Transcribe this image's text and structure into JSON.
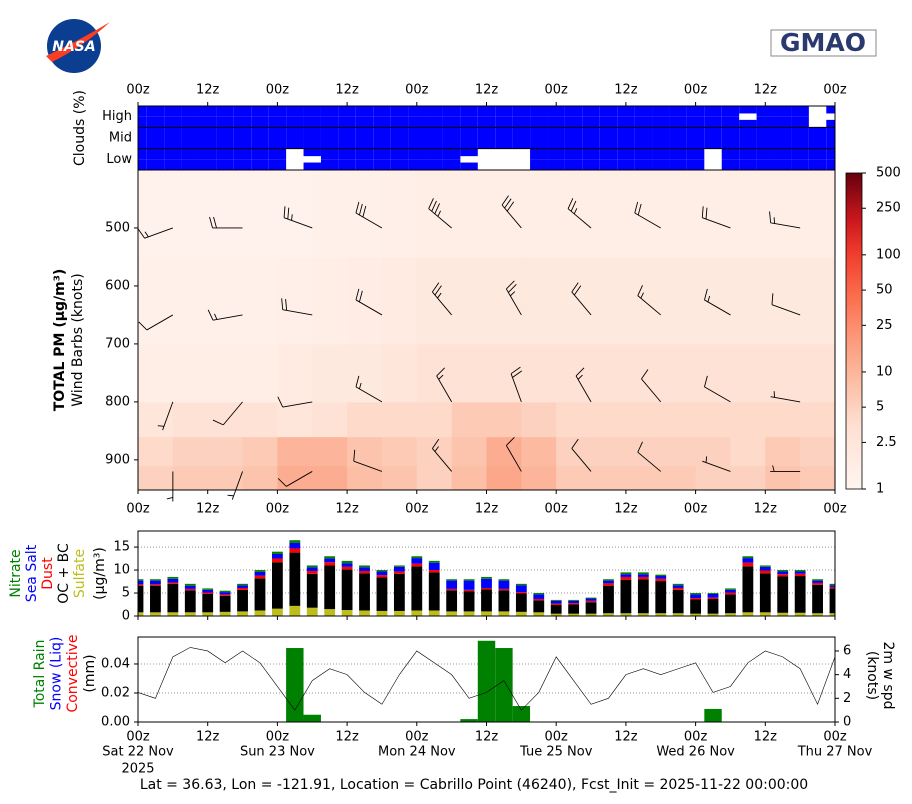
{
  "header": {
    "logo_left": "NASA",
    "logo_right": "GMAO"
  },
  "time_axis": {
    "xlim": [
      0,
      120
    ],
    "xticks": [
      {
        "value": 0,
        "label": "00z"
      },
      {
        "value": 12,
        "label": "12z"
      },
      {
        "value": 24,
        "label": "00z"
      },
      {
        "value": 36,
        "label": "12z"
      },
      {
        "value": 48,
        "label": "00z"
      },
      {
        "value": 60,
        "label": "12z"
      },
      {
        "value": 72,
        "label": "00z"
      },
      {
        "value": 84,
        "label": "12z"
      },
      {
        "value": 96,
        "label": "00z"
      },
      {
        "value": 108,
        "label": "12z"
      },
      {
        "value": 120,
        "label": "00z"
      }
    ],
    "dates": [
      {
        "value": 0,
        "label": "Sat 22 Nov"
      },
      {
        "value": 24,
        "label": "Sun 23 Nov"
      },
      {
        "value": 48,
        "label": "Mon 24 Nov"
      },
      {
        "value": 72,
        "label": "Tue 25 Nov"
      },
      {
        "value": 96,
        "label": "Wed 26 Nov"
      },
      {
        "value": 120,
        "label": "Thu 27 Nov"
      }
    ],
    "year": "2025"
  },
  "chart_data": [
    {
      "type": "cloud_rows",
      "ylabel": "Clouds (%)",
      "color": "#0000ff",
      "x": [
        0,
        3,
        6,
        9,
        12,
        15,
        18,
        21,
        24,
        27,
        30,
        33,
        36,
        39,
        42,
        45,
        48,
        51,
        54,
        57,
        60,
        63,
        66,
        69,
        72,
        75,
        78,
        81,
        84,
        87,
        90,
        93,
        96,
        99,
        102,
        105,
        108,
        111,
        114,
        117,
        120
      ],
      "series": [
        {
          "name": "High",
          "values": [
            100,
            100,
            100,
            100,
            100,
            100,
            100,
            100,
            100,
            100,
            100,
            100,
            100,
            100,
            100,
            100,
            100,
            100,
            100,
            100,
            100,
            100,
            100,
            100,
            100,
            100,
            100,
            100,
            100,
            100,
            100,
            100,
            100,
            100,
            100,
            70,
            100,
            100,
            100,
            0,
            70
          ]
        },
        {
          "name": "Mid",
          "values": [
            100,
            100,
            100,
            100,
            100,
            100,
            100,
            100,
            100,
            100,
            100,
            100,
            100,
            100,
            100,
            100,
            100,
            100,
            100,
            100,
            100,
            100,
            100,
            100,
            100,
            100,
            100,
            100,
            100,
            100,
            100,
            100,
            100,
            100,
            100,
            100,
            100,
            100,
            100,
            100,
            100
          ]
        },
        {
          "name": "Low",
          "values": [
            100,
            100,
            100,
            100,
            100,
            100,
            100,
            100,
            100,
            0,
            70,
            100,
            100,
            100,
            100,
            100,
            100,
            100,
            100,
            70,
            0,
            0,
            0,
            100,
            100,
            100,
            100,
            100,
            100,
            100,
            100,
            100,
            100,
            0,
            100,
            100,
            100,
            100,
            100,
            100,
            100
          ]
        }
      ]
    },
    {
      "type": "heatmap",
      "ylabel": "TOTAL PM (μg/m³)",
      "ylabel2": "Wind Barbs (knots)",
      "ylim": [
        952,
        400
      ],
      "yticks": [
        500,
        600,
        700,
        800,
        900
      ],
      "x_edges": [
        0,
        6,
        12,
        18,
        24,
        30,
        36,
        42,
        48,
        54,
        60,
        66,
        72,
        78,
        84,
        90,
        96,
        102,
        108,
        114,
        120
      ],
      "y_edges": [
        952,
        910,
        860,
        800,
        700,
        550,
        400
      ],
      "values": [
        [
          5,
          6,
          6,
          7,
          12,
          12,
          8,
          7,
          5,
          8,
          14,
          10,
          6,
          6,
          6,
          6,
          5,
          5,
          7,
          6
        ],
        [
          4,
          5,
          5,
          6,
          10,
          10,
          7,
          6,
          5,
          7,
          12,
          9,
          5,
          5,
          5,
          5,
          5,
          4,
          6,
          5
        ],
        [
          2.5,
          3,
          3,
          3,
          2.5,
          3,
          4,
          4,
          4,
          6,
          6,
          5,
          4,
          4,
          4,
          4,
          4,
          4,
          4,
          4
        ],
        [
          1.5,
          1.5,
          1.5,
          1.5,
          1.8,
          2,
          2,
          2.5,
          3,
          3,
          3,
          3,
          3,
          3,
          3,
          3,
          3,
          3,
          3,
          3
        ],
        [
          1.3,
          1.3,
          1.3,
          1.3,
          1.4,
          1.5,
          1.6,
          1.8,
          2,
          2,
          2,
          2,
          2,
          2,
          2,
          2,
          2,
          2,
          2,
          2
        ],
        [
          1.2,
          1.2,
          1.2,
          1.2,
          1.2,
          1.3,
          1.3,
          1.4,
          1.5,
          1.5,
          1.5,
          1.5,
          1.5,
          1.5,
          1.5,
          1.5,
          1.5,
          1.5,
          1.5,
          1.5
        ]
      ],
      "colormap": "Reds",
      "log_scale": true,
      "clim": [
        1,
        500
      ],
      "cticks": [
        1,
        2.5,
        5,
        10,
        25,
        50,
        100,
        250,
        500
      ],
      "barbs": {
        "x": [
          6,
          18,
          30,
          42,
          54,
          66,
          78,
          90,
          102,
          114
        ],
        "levels": [
          500,
          650,
          800,
          920
        ],
        "speed": [
          [
            15,
            20,
            25,
            30,
            35,
            30,
            25,
            20,
            20,
            15
          ],
          [
            10,
            15,
            20,
            20,
            25,
            25,
            20,
            15,
            15,
            10
          ],
          [
            5,
            10,
            10,
            15,
            15,
            20,
            15,
            10,
            10,
            5
          ],
          [
            5,
            5,
            10,
            10,
            15,
            10,
            10,
            10,
            5,
            5
          ]
        ],
        "direction": [
          [
            250,
            270,
            290,
            300,
            310,
            320,
            310,
            300,
            290,
            280
          ],
          [
            240,
            260,
            280,
            300,
            320,
            330,
            320,
            310,
            300,
            290
          ],
          [
            200,
            220,
            260,
            300,
            330,
            340,
            330,
            320,
            300,
            280
          ],
          [
            180,
            200,
            240,
            290,
            320,
            330,
            320,
            310,
            290,
            270
          ]
        ]
      }
    },
    {
      "type": "stacked_bar",
      "ylabel": "(μg/m³)",
      "ylim": [
        0,
        18.5
      ],
      "yticks": [
        0,
        5,
        10,
        15
      ],
      "grid": true,
      "x": [
        0,
        3,
        6,
        9,
        12,
        15,
        18,
        21,
        24,
        27,
        30,
        33,
        36,
        39,
        42,
        45,
        48,
        51,
        54,
        57,
        60,
        63,
        66,
        69,
        72,
        75,
        78,
        81,
        84,
        87,
        90,
        93,
        96,
        99,
        102,
        105,
        108,
        111,
        114,
        117,
        120
      ],
      "series": [
        {
          "name": "Sulfate",
          "color": "#bdbd1c",
          "values": [
            0.8,
            0.8,
            0.8,
            0.8,
            0.8,
            0.9,
            1.0,
            1.2,
            1.6,
            2.2,
            1.8,
            1.5,
            1.3,
            1.2,
            1.1,
            1.1,
            1.2,
            1.2,
            1.0,
            1.0,
            1.0,
            1.0,
            0.9,
            0.8,
            0.5,
            0.5,
            0.5,
            0.6,
            0.6,
            0.6,
            0.6,
            0.6,
            0.5,
            0.5,
            0.6,
            0.8,
            0.8,
            0.7,
            0.7,
            0.6,
            0.6
          ]
        },
        {
          "name": "OC + BC",
          "color": "#000000",
          "values": [
            5.8,
            5.8,
            6.2,
            4.8,
            4.0,
            3.5,
            4.7,
            7.0,
            10.1,
            11.6,
            7.4,
            9.5,
            8.8,
            8.1,
            7.3,
            8.1,
            9.6,
            8.3,
            4.6,
            4.4,
            4.8,
            4.6,
            4.0,
            2.6,
            1.9,
            2.0,
            2.5,
            6.0,
            7.3,
            7.4,
            7.0,
            5.1,
            3.1,
            3.2,
            4.1,
            10.0,
            8.5,
            7.9,
            8.0,
            6.2,
            5.4
          ]
        },
        {
          "name": "Dust",
          "color": "#ff0000",
          "values": [
            0.3,
            0.3,
            0.3,
            0.3,
            0.3,
            0.3,
            0.4,
            0.6,
            0.8,
            0.9,
            0.6,
            0.7,
            0.6,
            0.5,
            0.5,
            0.5,
            0.6,
            0.5,
            0.3,
            0.3,
            0.3,
            0.3,
            0.3,
            0.3,
            0.3,
            0.3,
            0.3,
            0.5,
            0.6,
            0.5,
            0.5,
            0.4,
            0.3,
            0.3,
            0.4,
            0.8,
            0.6,
            0.5,
            0.5,
            0.4,
            0.3
          ]
        },
        {
          "name": "Sea Salt",
          "color": "#0000ff",
          "values": [
            0.8,
            0.8,
            0.8,
            0.7,
            0.6,
            0.5,
            0.6,
            0.8,
            1.0,
            1.2,
            0.8,
            0.8,
            0.8,
            0.8,
            0.8,
            1.0,
            1.2,
            1.6,
            1.8,
            2.0,
            2.0,
            1.8,
            1.5,
            1.0,
            0.6,
            0.5,
            0.5,
            0.6,
            0.6,
            0.6,
            0.6,
            0.6,
            0.8,
            0.8,
            0.6,
            1.0,
            0.8,
            0.6,
            0.5,
            0.5,
            0.4
          ]
        },
        {
          "name": "Nitrate",
          "color": "#008000",
          "values": [
            0.3,
            0.3,
            0.4,
            0.4,
            0.3,
            0.3,
            0.3,
            0.4,
            0.5,
            0.6,
            0.4,
            0.5,
            0.5,
            0.4,
            0.3,
            0.3,
            0.4,
            0.4,
            0.3,
            0.3,
            0.4,
            0.3,
            0.3,
            0.3,
            0.2,
            0.2,
            0.2,
            0.3,
            0.4,
            0.4,
            0.3,
            0.3,
            0.3,
            0.2,
            0.3,
            0.4,
            0.3,
            0.3,
            0.3,
            0.3,
            0.3
          ]
        }
      ]
    },
    {
      "type": "bar_line",
      "ylabel": "(mm)",
      "y2label": "(knots)",
      "ylim": [
        0,
        0.0586
      ],
      "yticks": [
        {
          "value": 0,
          "label": "0.00"
        },
        {
          "value": 0.02,
          "label": "0.02"
        },
        {
          "value": 0.04,
          "label": "0.04"
        }
      ],
      "y2lim": [
        0,
        7.18
      ],
      "y2ticks": [
        0,
        2,
        4,
        6
      ],
      "grid": true,
      "bar_width": 3,
      "series": [
        {
          "name": "Total Rain",
          "color": "#008000",
          "x": [
            27,
            30,
            57,
            60,
            63,
            66,
            99
          ],
          "values": [
            0.051,
            0.005,
            0.002,
            0.056,
            0.051,
            0.011,
            0.009
          ]
        },
        {
          "name": "Snow (Liq)",
          "color": "#0000ff"
        },
        {
          "name": "Convective",
          "color": "#ff0000"
        },
        {
          "name": "2m w spd",
          "color": "#000000",
          "axis": "y2",
          "x": [
            0,
            3,
            6,
            9,
            12,
            15,
            18,
            21,
            24,
            27,
            30,
            33,
            36,
            39,
            42,
            45,
            48,
            51,
            54,
            57,
            60,
            63,
            66,
            69,
            72,
            75,
            78,
            81,
            84,
            87,
            90,
            93,
            96,
            99,
            102,
            105,
            108,
            111,
            114,
            117,
            120
          ],
          "values": [
            2.5,
            2,
            5.5,
            6.3,
            6,
            5,
            6,
            5,
            3,
            1,
            3.5,
            4.5,
            4,
            2.5,
            1.5,
            4,
            6,
            5,
            4,
            2,
            2.5,
            3.5,
            1,
            2.5,
            5.5,
            3.5,
            1.5,
            2,
            4,
            4.5,
            4,
            4.5,
            5,
            2.5,
            3,
            5,
            6,
            5.5,
            4.5,
            1.5,
            5.5
          ]
        }
      ]
    }
  ],
  "footer": "Lat = 36.63, Lon = -121.91, Location = Cabrillo Point (46240), Fcst_Init = 2025-11-22 00:00:00"
}
